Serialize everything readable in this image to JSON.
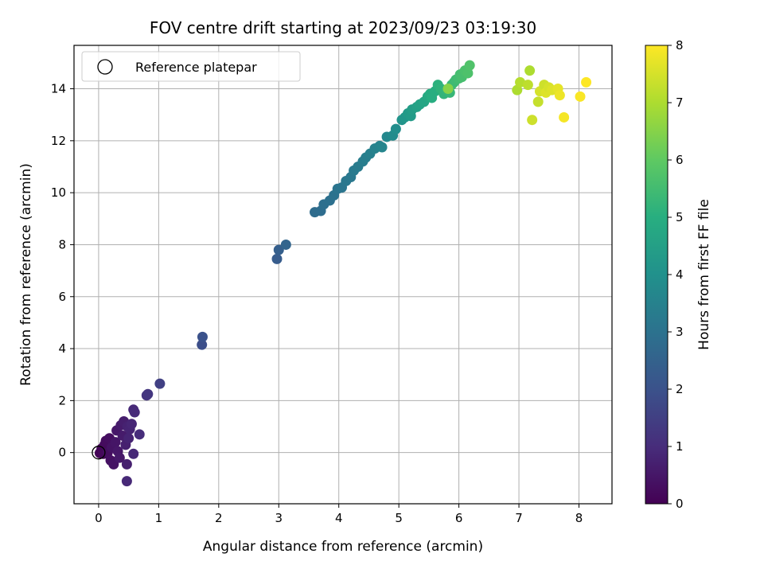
{
  "chart_data": {
    "type": "scatter",
    "title": "FOV centre drift starting at 2023/09/23 03:19:30",
    "xlabel": "Angular distance from reference (arcmin)",
    "ylabel": "Rotation from reference (arcmin)",
    "xlim": [
      -0.41,
      8.55
    ],
    "ylim": [
      -1.97,
      15.67
    ],
    "xticks": [
      0,
      1,
      2,
      3,
      4,
      5,
      6,
      7,
      8
    ],
    "yticks": [
      0,
      2,
      4,
      6,
      8,
      10,
      12,
      14
    ],
    "grid": true,
    "legend": {
      "placement": "top-left",
      "entries": [
        "Reference platepar"
      ]
    },
    "reference_point": {
      "x": 0,
      "y": 0
    },
    "colorbar": {
      "label": "Hours from first FF file",
      "colormap": "viridis",
      "range": [
        0,
        8
      ],
      "ticks": [
        0,
        1,
        2,
        3,
        4,
        5,
        6,
        7,
        8
      ]
    },
    "points": [
      {
        "x": 0.02,
        "y": -0.02,
        "c": 0.05
      },
      {
        "x": 0.05,
        "y": 0.15,
        "c": 0.1
      },
      {
        "x": 0.08,
        "y": -0.05,
        "c": 0.15
      },
      {
        "x": 0.1,
        "y": 0.3,
        "c": 0.2
      },
      {
        "x": 0.12,
        "y": 0.45,
        "c": 0.25
      },
      {
        "x": 0.15,
        "y": 0.0,
        "c": 0.3
      },
      {
        "x": 0.18,
        "y": 0.55,
        "c": 0.3
      },
      {
        "x": 0.2,
        "y": -0.3,
        "c": 0.35
      },
      {
        "x": 0.22,
        "y": 0.2,
        "c": 0.4
      },
      {
        "x": 0.25,
        "y": -0.45,
        "c": 0.4
      },
      {
        "x": 0.28,
        "y": 0.4,
        "c": 0.45
      },
      {
        "x": 0.3,
        "y": 0.85,
        "c": 0.5
      },
      {
        "x": 0.32,
        "y": 0.05,
        "c": 0.5
      },
      {
        "x": 0.35,
        "y": -0.2,
        "c": 0.55
      },
      {
        "x": 0.37,
        "y": 1.05,
        "c": 0.6
      },
      {
        "x": 0.4,
        "y": 0.65,
        "c": 0.6
      },
      {
        "x": 0.42,
        "y": 1.2,
        "c": 0.65
      },
      {
        "x": 0.45,
        "y": 0.3,
        "c": 0.7
      },
      {
        "x": 0.47,
        "y": -0.45,
        "c": 0.7
      },
      {
        "x": 0.48,
        "y": 1.0,
        "c": 0.75
      },
      {
        "x": 0.5,
        "y": 0.55,
        "c": 0.8
      },
      {
        "x": 0.52,
        "y": 0.9,
        "c": 0.8
      },
      {
        "x": 0.55,
        "y": 1.1,
        "c": 0.85
      },
      {
        "x": 0.58,
        "y": 1.65,
        "c": 0.9
      },
      {
        "x": 0.6,
        "y": 1.55,
        "c": 0.95
      },
      {
        "x": 0.58,
        "y": -0.05,
        "c": 0.9
      },
      {
        "x": 0.47,
        "y": -1.1,
        "c": 0.9
      },
      {
        "x": 0.68,
        "y": 0.7,
        "c": 1.0
      },
      {
        "x": 0.8,
        "y": 2.2,
        "c": 1.2
      },
      {
        "x": 0.82,
        "y": 2.25,
        "c": 1.25
      },
      {
        "x": 1.02,
        "y": 2.65,
        "c": 1.5
      },
      {
        "x": 1.72,
        "y": 4.15,
        "c": 1.9
      },
      {
        "x": 1.73,
        "y": 4.45,
        "c": 2.0
      },
      {
        "x": 2.97,
        "y": 7.45,
        "c": 2.3
      },
      {
        "x": 3.0,
        "y": 7.8,
        "c": 2.4
      },
      {
        "x": 3.12,
        "y": 8.0,
        "c": 2.6
      },
      {
        "x": 3.6,
        "y": 9.25,
        "c": 2.8
      },
      {
        "x": 3.7,
        "y": 9.3,
        "c": 2.85
      },
      {
        "x": 3.75,
        "y": 9.55,
        "c": 2.9
      },
      {
        "x": 3.85,
        "y": 9.7,
        "c": 2.95
      },
      {
        "x": 3.92,
        "y": 9.9,
        "c": 3.0
      },
      {
        "x": 3.98,
        "y": 10.15,
        "c": 3.05
      },
      {
        "x": 4.05,
        "y": 10.2,
        "c": 3.1
      },
      {
        "x": 4.12,
        "y": 10.45,
        "c": 3.15
      },
      {
        "x": 4.2,
        "y": 10.6,
        "c": 3.2
      },
      {
        "x": 4.25,
        "y": 10.85,
        "c": 3.25
      },
      {
        "x": 4.32,
        "y": 11.0,
        "c": 3.3
      },
      {
        "x": 4.4,
        "y": 11.2,
        "c": 3.35
      },
      {
        "x": 4.45,
        "y": 11.35,
        "c": 3.4
      },
      {
        "x": 4.52,
        "y": 11.5,
        "c": 3.45
      },
      {
        "x": 4.6,
        "y": 11.7,
        "c": 3.5
      },
      {
        "x": 4.68,
        "y": 11.8,
        "c": 3.55
      },
      {
        "x": 4.72,
        "y": 11.75,
        "c": 3.6
      },
      {
        "x": 4.8,
        "y": 12.15,
        "c": 3.7
      },
      {
        "x": 4.9,
        "y": 12.2,
        "c": 3.8
      },
      {
        "x": 4.95,
        "y": 12.45,
        "c": 3.9
      },
      {
        "x": 5.05,
        "y": 12.8,
        "c": 4.1
      },
      {
        "x": 5.1,
        "y": 12.9,
        "c": 4.2
      },
      {
        "x": 5.15,
        "y": 13.05,
        "c": 4.3
      },
      {
        "x": 5.2,
        "y": 12.95,
        "c": 4.35
      },
      {
        "x": 5.22,
        "y": 13.2,
        "c": 4.4
      },
      {
        "x": 5.3,
        "y": 13.3,
        "c": 4.5
      },
      {
        "x": 5.35,
        "y": 13.4,
        "c": 4.6
      },
      {
        "x": 5.42,
        "y": 13.5,
        "c": 4.7
      },
      {
        "x": 5.48,
        "y": 13.7,
        "c": 4.8
      },
      {
        "x": 5.52,
        "y": 13.8,
        "c": 4.9
      },
      {
        "x": 5.55,
        "y": 13.65,
        "c": 4.95
      },
      {
        "x": 5.6,
        "y": 13.9,
        "c": 5.0
      },
      {
        "x": 5.65,
        "y": 14.15,
        "c": 5.1
      },
      {
        "x": 5.7,
        "y": 14.0,
        "c": 5.15
      },
      {
        "x": 5.75,
        "y": 13.8,
        "c": 5.2
      },
      {
        "x": 5.8,
        "y": 13.95,
        "c": 5.25
      },
      {
        "x": 5.85,
        "y": 13.85,
        "c": 5.3
      },
      {
        "x": 5.88,
        "y": 14.15,
        "c": 5.35
      },
      {
        "x": 5.92,
        "y": 14.25,
        "c": 5.4
      },
      {
        "x": 5.95,
        "y": 14.35,
        "c": 5.45
      },
      {
        "x": 6.0,
        "y": 14.4,
        "c": 5.5
      },
      {
        "x": 6.02,
        "y": 14.55,
        "c": 5.55
      },
      {
        "x": 6.05,
        "y": 14.45,
        "c": 5.6
      },
      {
        "x": 6.1,
        "y": 14.7,
        "c": 5.65
      },
      {
        "x": 6.15,
        "y": 14.6,
        "c": 5.7
      },
      {
        "x": 6.18,
        "y": 14.9,
        "c": 5.75
      },
      {
        "x": 5.82,
        "y": 14.0,
        "c": 6.5
      },
      {
        "x": 6.97,
        "y": 13.95,
        "c": 7.0
      },
      {
        "x": 7.02,
        "y": 14.25,
        "c": 7.1
      },
      {
        "x": 7.15,
        "y": 14.15,
        "c": 7.2
      },
      {
        "x": 7.18,
        "y": 14.7,
        "c": 7.0
      },
      {
        "x": 7.22,
        "y": 12.8,
        "c": 7.4
      },
      {
        "x": 7.32,
        "y": 13.5,
        "c": 7.3
      },
      {
        "x": 7.35,
        "y": 13.9,
        "c": 7.5
      },
      {
        "x": 7.42,
        "y": 14.15,
        "c": 7.4
      },
      {
        "x": 7.45,
        "y": 13.85,
        "c": 7.6
      },
      {
        "x": 7.5,
        "y": 14.05,
        "c": 7.5
      },
      {
        "x": 7.55,
        "y": 13.95,
        "c": 7.6
      },
      {
        "x": 7.65,
        "y": 14.0,
        "c": 7.7
      },
      {
        "x": 7.68,
        "y": 13.75,
        "c": 7.8
      },
      {
        "x": 7.75,
        "y": 12.9,
        "c": 7.9
      },
      {
        "x": 8.02,
        "y": 13.7,
        "c": 7.95
      },
      {
        "x": 8.12,
        "y": 14.25,
        "c": 8.0
      }
    ]
  }
}
